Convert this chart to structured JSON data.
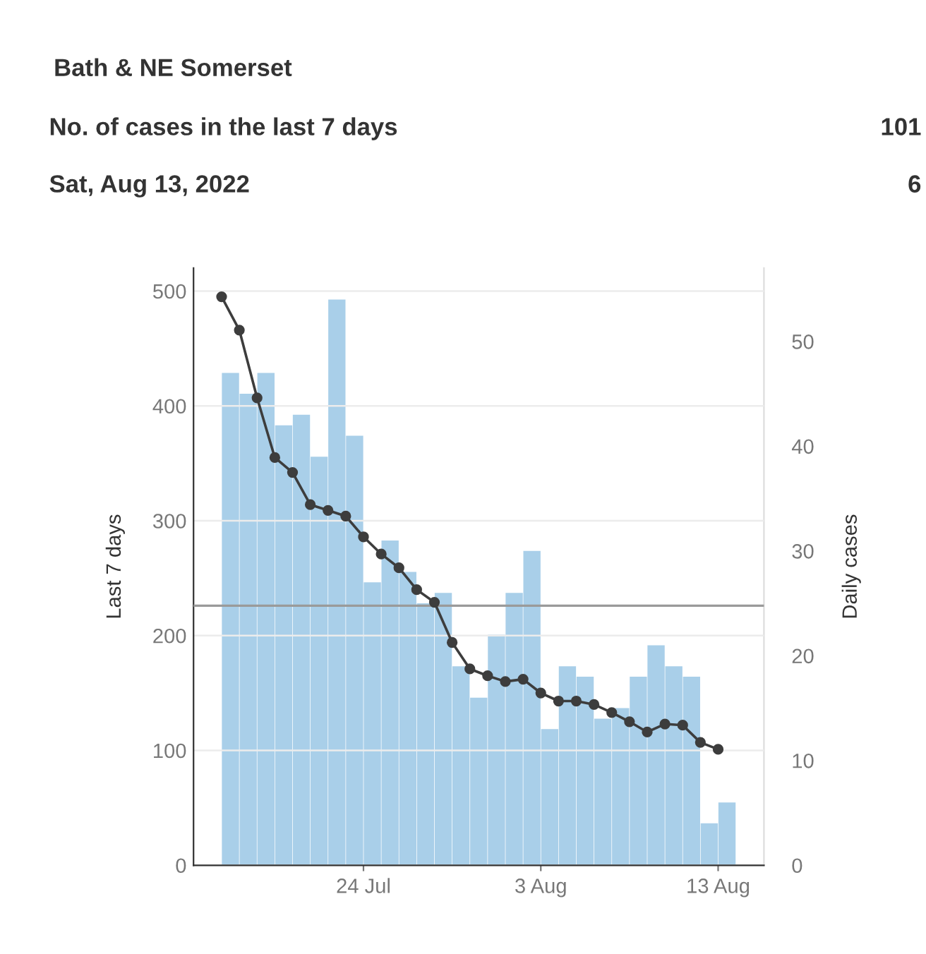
{
  "chart_data": {
    "type": "bar",
    "title": "Bath & NE Somerset",
    "annotations": [
      "No. of cases in the last 7 days",
      "101",
      "Sat, Aug 13, 2022",
      "6"
    ],
    "x": [
      "2022-07-16",
      "2022-07-17",
      "2022-07-18",
      "2022-07-19",
      "2022-07-20",
      "2022-07-21",
      "2022-07-22",
      "2022-07-23",
      "2022-07-24",
      "2022-07-25",
      "2022-07-26",
      "2022-07-27",
      "2022-07-28",
      "2022-07-29",
      "2022-07-30",
      "2022-07-31",
      "2022-08-01",
      "2022-08-02",
      "2022-08-03",
      "2022-08-04",
      "2022-08-05",
      "2022-08-06",
      "2022-08-07",
      "2022-08-08",
      "2022-08-09",
      "2022-08-10",
      "2022-08-11",
      "2022-08-12",
      "2022-08-13"
    ],
    "series": [
      {
        "name": null,
        "axis": "y2",
        "x": [
          "2022-07-16T12:00",
          "2022-07-17T12:00",
          "2022-07-18T12:00",
          "2022-07-19T12:00",
          "2022-07-20T12:00",
          "2022-07-21T12:00",
          "2022-07-22T12:00",
          "2022-07-23T12:00",
          "2022-07-24T12:00",
          "2022-07-25T12:00",
          "2022-07-26T12:00",
          "2022-07-27T12:00",
          "2022-07-28T12:00",
          "2022-07-29T12:00",
          "2022-07-30T12:00",
          "2022-07-31T12:00",
          "2022-08-01T12:00",
          "2022-08-02T12:00",
          "2022-08-03T12:00",
          "2022-08-04T12:00",
          "2022-08-05T12:00",
          "2022-08-06T12:00",
          "2022-08-07T12:00",
          "2022-08-08T12:00",
          "2022-08-09T12:00",
          "2022-08-10T12:00",
          "2022-08-11T12:00",
          "2022-08-12T12:00",
          "2022-08-13T12:00"
        ],
        "color": "#a9cfe9",
        "values": [
          47,
          45,
          47,
          42,
          43,
          39,
          54,
          41,
          27,
          31,
          28,
          25,
          26,
          19,
          16,
          22,
          26,
          30,
          13,
          19,
          18,
          14,
          15,
          18,
          21,
          19,
          18,
          4,
          6
        ]
      },
      {
        "name": null,
        "type": "line",
        "axis": "y",
        "color": "#3d3d3d",
        "marker": "circle",
        "line_style": "solid",
        "values": [
          495,
          466,
          407,
          355,
          342,
          314,
          309,
          304,
          286,
          271,
          259,
          240,
          229,
          194,
          171,
          165,
          160,
          162,
          150,
          143,
          143,
          140,
          133,
          125,
          116,
          123,
          122,
          107,
          101
        ]
      }
    ],
    "ylabel": "Last 7 days",
    "y2label": "Daily cases",
    "xlim": [
      "2022-07-14T10:00",
      "2022-08-15T14:00"
    ],
    "xticks": [
      {
        "value": "2022-07-24",
        "label": "24 Jul"
      },
      {
        "value": "2022-08-03",
        "label": "3 Aug"
      },
      {
        "value": "2022-08-13",
        "label": "13 Aug"
      }
    ],
    "ylim": [
      0,
      520
    ],
    "yticks": [
      0,
      100,
      200,
      300,
      400,
      500
    ],
    "y2lim": [
      0,
      57
    ],
    "y2ticks": [
      0,
      10,
      20,
      30,
      40,
      50
    ],
    "ref_lines": [
      {
        "axis": "y",
        "value": 226,
        "label": null,
        "color": "#9a9a9a"
      }
    ],
    "grid": "y",
    "legend": false
  }
}
